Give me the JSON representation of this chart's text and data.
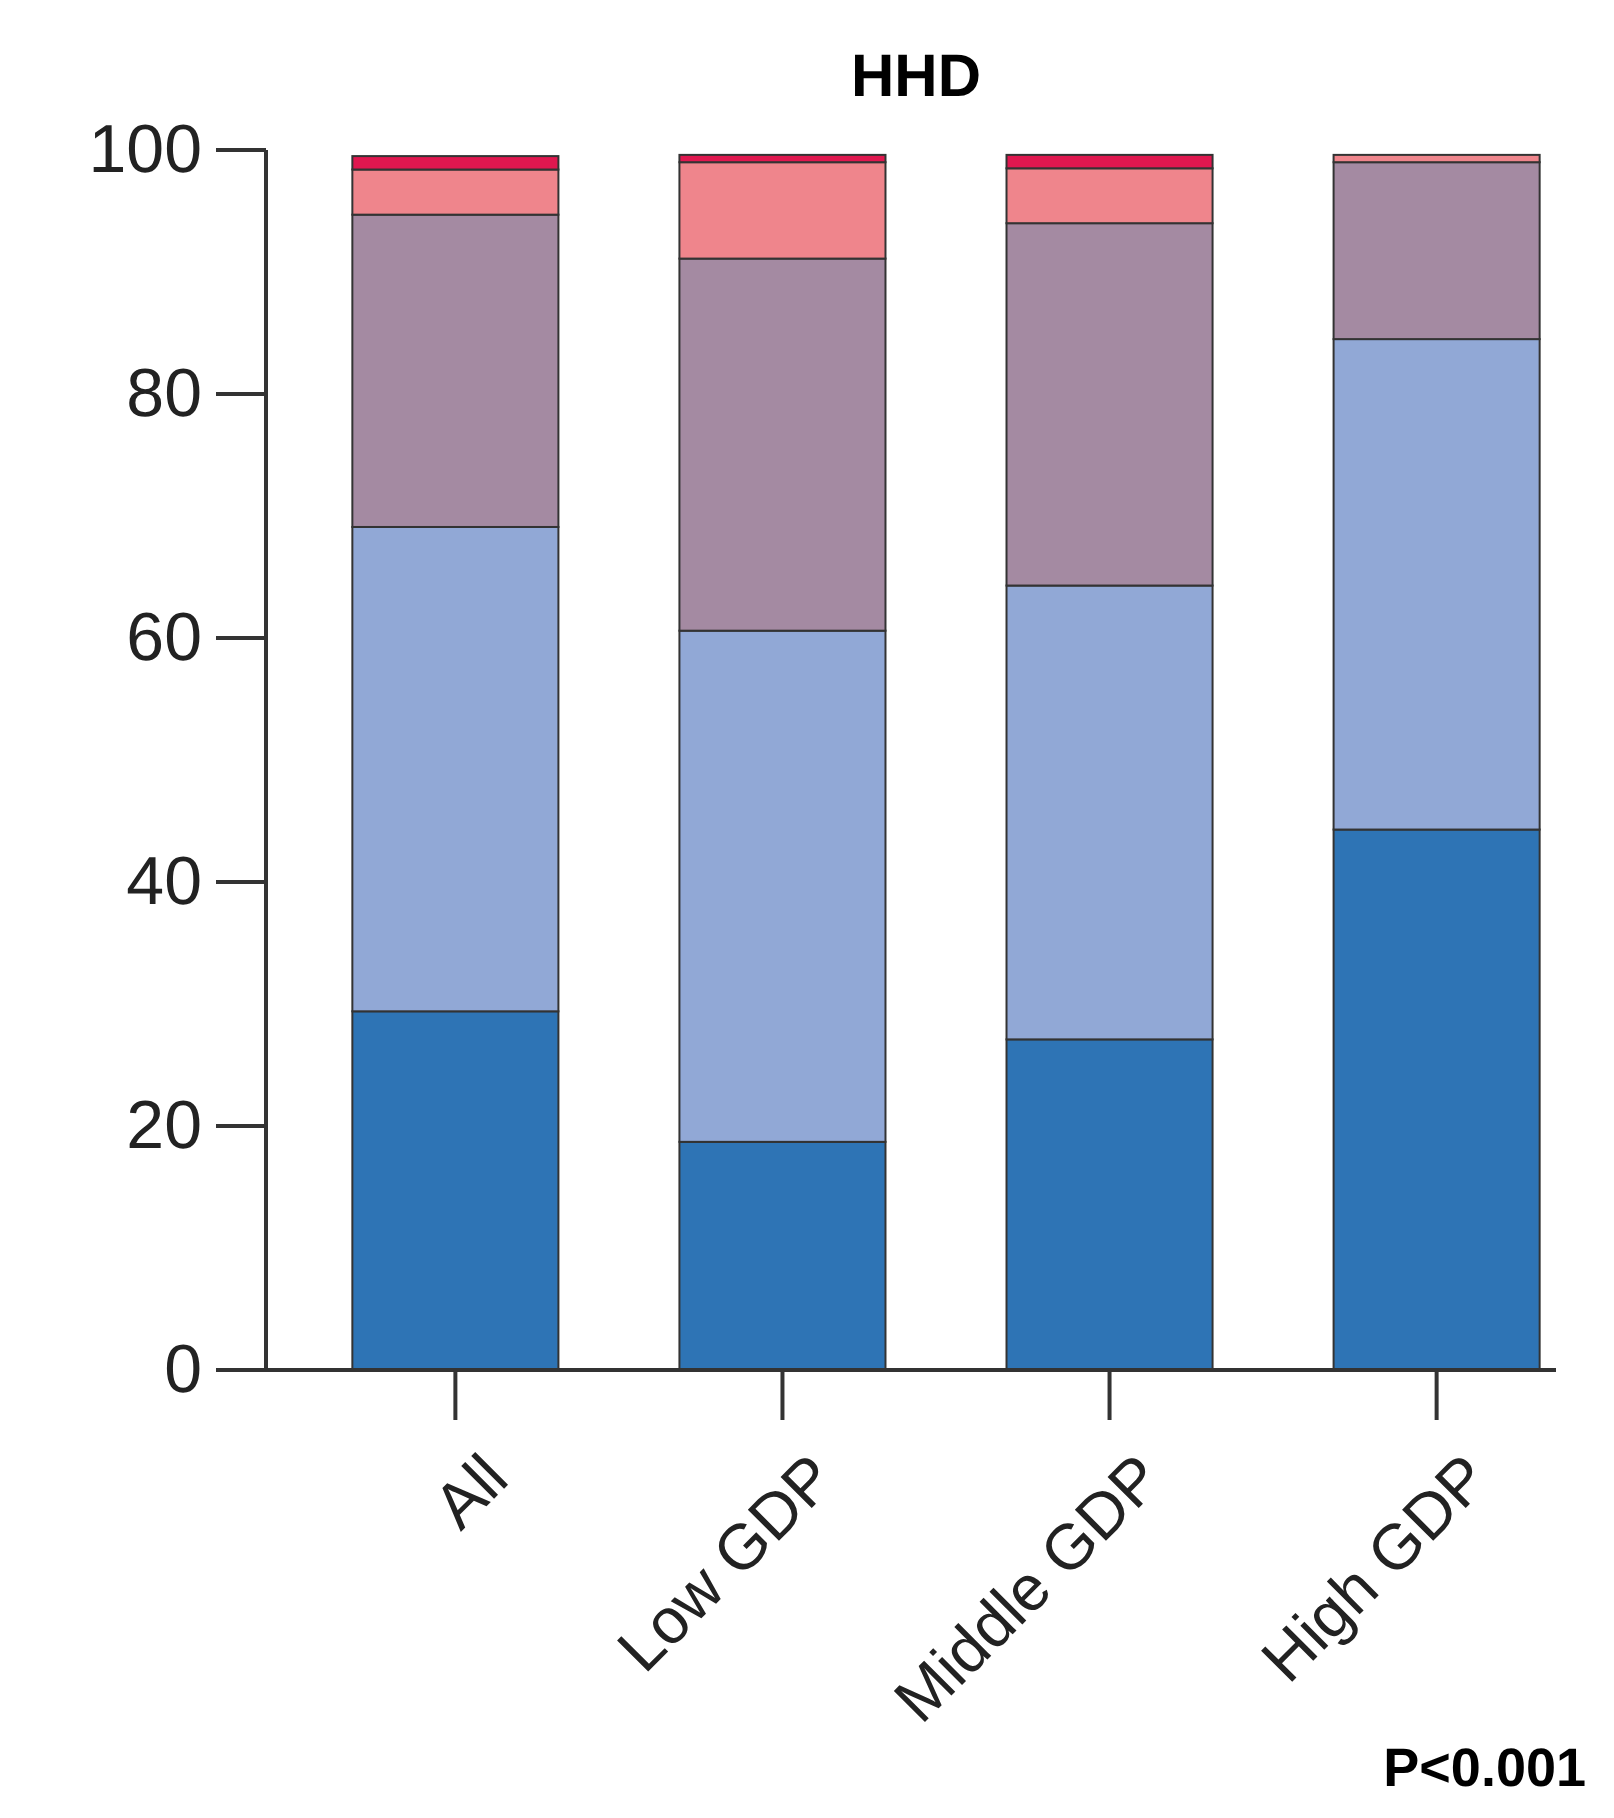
{
  "chart_data": {
    "type": "bar",
    "title": "HHD",
    "categories": [
      "All",
      "Low GDP",
      "Middle GDP",
      "High GDP"
    ],
    "stacked": true,
    "series": [
      {
        "color": "#2e74b5",
        "values": [
          29.4,
          18.7,
          27.1,
          44.3
        ]
      },
      {
        "color": "#91a8d6",
        "values": [
          39.7,
          41.9,
          37.2,
          40.2
        ]
      },
      {
        "color": "#a48aa2",
        "values": [
          25.6,
          30.5,
          29.7,
          14.5
        ]
      },
      {
        "color": "#ef858c",
        "values": [
          3.7,
          7.9,
          4.5,
          0.6
        ]
      },
      {
        "color": "#e0174f",
        "values": [
          1.1,
          0.6,
          1.1,
          null
        ]
      }
    ],
    "ylim": [
      0,
      100
    ],
    "yticks": [
      0,
      20,
      40,
      60,
      80,
      100
    ],
    "grid": false,
    "annotations": [
      "P<0.001"
    ]
  }
}
